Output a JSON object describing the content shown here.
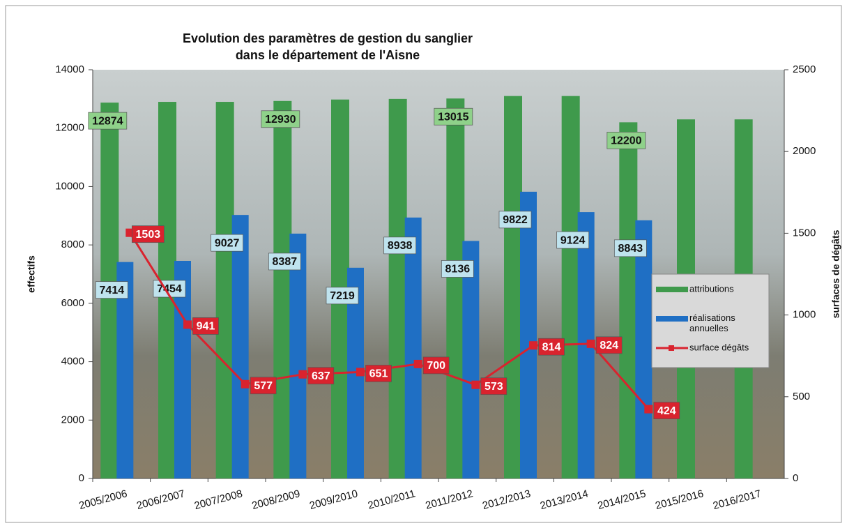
{
  "chart_data": {
    "type": "bar-line",
    "title": "Evolution des paramètres de gestion du sanglier",
    "subtitle": "dans le département de l'Aisne",
    "y_label": "effectifs",
    "y2_label": "surfaces de dégâts",
    "categories": [
      "2005/2006",
      "2006/2007",
      "2007/2008",
      "2008/2009",
      "2009/2010",
      "2010/2011",
      "2011/2012",
      "2012/2013",
      "2013/2014",
      "2014/2015",
      "2015/2016",
      "2016/2017"
    ],
    "series": [
      {
        "name": "attributions",
        "type": "bar",
        "color": "#3f9a4c",
        "values": [
          12874,
          12900,
          12900,
          12930,
          12980,
          13000,
          13015,
          13100,
          13100,
          12200,
          12300,
          12300
        ],
        "value_labels": [
          "12874",
          null,
          null,
          "12930",
          null,
          null,
          "13015",
          null,
          null,
          "12200",
          null,
          null
        ]
      },
      {
        "name": "réalisations annuelles",
        "type": "bar",
        "color": "#1f6fc4",
        "values": [
          7414,
          7454,
          9027,
          8387,
          7219,
          8938,
          8136,
          9822,
          9124,
          8843,
          null,
          null
        ]
      },
      {
        "name": "surface dégâts",
        "type": "line",
        "axis": "y2",
        "color": "#d9232e",
        "values": [
          1503,
          941,
          577,
          637,
          651,
          700,
          573,
          814,
          824,
          424,
          null,
          null
        ]
      }
    ],
    "ylim": [
      0,
      14000
    ],
    "yticks": [
      0,
      2000,
      4000,
      6000,
      8000,
      10000,
      12000,
      14000
    ],
    "y2lim": [
      0,
      2500
    ],
    "y2ticks": [
      0,
      500,
      1000,
      1500,
      2000,
      2500
    ],
    "legend": "right"
  }
}
